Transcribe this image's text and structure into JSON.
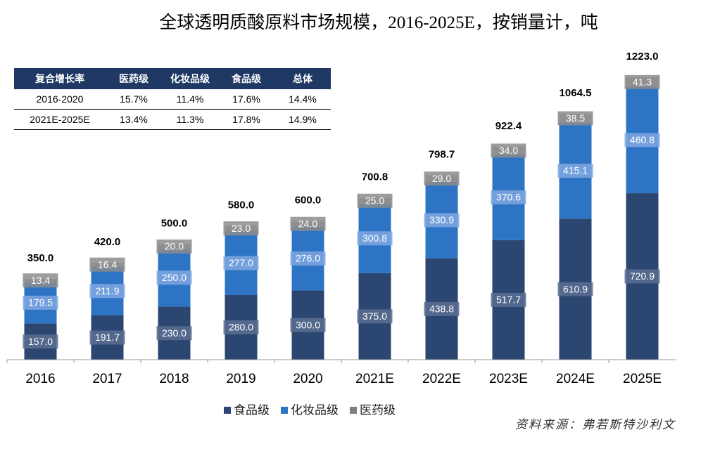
{
  "chart_data": {
    "type": "stacked-bar",
    "title": "全球透明质酸原料市场规模，2016-2025E，按销量计，吨",
    "categories": [
      "2016",
      "2017",
      "2018",
      "2019",
      "2020",
      "2021E",
      "2022E",
      "2023E",
      "2024E",
      "2025E"
    ],
    "series": [
      {
        "name": "食品级",
        "color": "#2b4670",
        "values": [
          157,
          191.7,
          230,
          280,
          300,
          375,
          438.8,
          517.7,
          610.9,
          720.9
        ],
        "value_labels": [
          "157.0",
          "191.7",
          "230.0",
          "280.0",
          "300.0",
          "375.0",
          "438.8",
          "517.7",
          "610.9",
          "720.9"
        ]
      },
      {
        "name": "化妆品级",
        "color": "#2e74c5",
        "values": [
          179.5,
          211.9,
          250,
          277,
          276,
          300.8,
          330.9,
          370.6,
          415.1,
          460.8
        ],
        "value_labels": [
          "179.5",
          "211.9",
          "250.0",
          "277.0",
          "276.0",
          "300.8",
          "330.9",
          "370.6",
          "415.1",
          "460.8"
        ]
      },
      {
        "name": "医药级",
        "color": "#a5a5a5",
        "values": [
          13.4,
          16.4,
          20,
          23,
          24,
          25,
          29,
          34,
          38.5,
          41.3
        ],
        "value_labels": [
          "13.4",
          "16.4",
          "20.0",
          "23.0",
          "24.0",
          "25.0",
          "29.0",
          "34.0",
          "38.5",
          "41.3"
        ]
      }
    ],
    "totals": {
      "values": [
        350,
        420,
        500,
        580,
        600,
        700.8,
        798.7,
        922.4,
        1064.5,
        1223
      ],
      "value_labels": [
        "350.0",
        "420.0",
        "500.0",
        "580.0",
        "600.0",
        "700.8",
        "798.7",
        "922.4",
        "1064.5",
        "1223.0"
      ]
    },
    "table": {
      "header": [
        "复合增长率",
        "医药级",
        "化妆品级",
        "食品级",
        "总体"
      ],
      "rows": [
        [
          "2016-2020",
          "15.7%",
          "11.4%",
          "17.6%",
          "14.4%"
        ],
        [
          "2021E-2025E",
          "13.4%",
          "11.3%",
          "17.8%",
          "14.9%"
        ]
      ]
    },
    "source": "资料来源：弗若斯特沙利文"
  }
}
